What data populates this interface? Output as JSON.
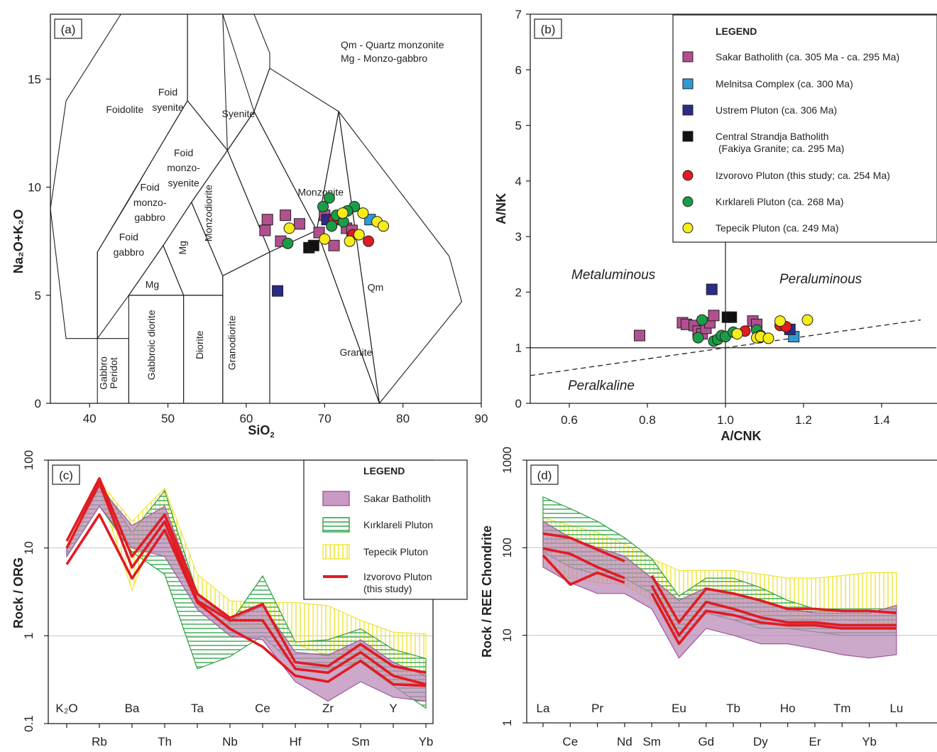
{
  "panels": {
    "a": {
      "label": "(a)",
      "xlabel": "SiO",
      "xlabel_sub": "2",
      "ylabel": "Na₂O+K₂O",
      "note_lines": [
        "Qm - Quartz monzonite",
        "Mg - Monzo-gabbro"
      ],
      "field_labels": [
        "Foidolite",
        "Foid",
        "syenite",
        "Syenite",
        "Foid",
        "monzo-",
        "syenite",
        "Foid",
        "monzo-",
        "gabbro",
        "Foid",
        "gabbro",
        "Mg",
        "Monzodiorite",
        "Monzonite",
        "Qm",
        "Granite",
        "Granodiorite",
        "Diorite",
        "Gabbroic diorite",
        "Gabbro",
        "Peridot",
        "gabbro"
      ]
    },
    "b": {
      "label": "(b)",
      "xlabel": "A/CNK",
      "ylabel": "A/NK",
      "region_labels": [
        "Metaluminous",
        "Peraluminous",
        "Peralkaline"
      ]
    },
    "c": {
      "label": "(c)",
      "ylabel": "Rock / ORG",
      "top_labels": [
        "K₂O",
        "Ba",
        "Ta",
        "Ce",
        "Zr",
        "Y"
      ],
      "bottom_labels": [
        "Rb",
        "Th",
        "Nb",
        "Hf",
        "Sm",
        "Yb"
      ]
    },
    "d": {
      "label": "(d)",
      "ylabel": "Rock / REE Chondrite",
      "top_labels": [
        "La",
        "Pr",
        "Eu",
        "Tb",
        "Ho",
        "Tm",
        "Lu"
      ],
      "bottom_labels": [
        "Ce",
        "Nd",
        "Sm",
        "Gd",
        "Dy",
        "Er",
        "Yb"
      ]
    }
  },
  "legend_b": {
    "title": "LEGEND",
    "items": [
      {
        "label": "Sakar Batholith (ca. 305 Ma - ca. 295 Ma)",
        "color": "#b1508f",
        "shape": "square"
      },
      {
        "label": "Melnitsa Complex (ca. 300 Ma)",
        "color": "#2f9bd6",
        "shape": "square"
      },
      {
        "label": "Ustrem Pluton (ca. 306 Ma)",
        "color": "#2b2b8a",
        "shape": "square"
      },
      {
        "label": "Central Strandja Batholith",
        "label2": "(Fakiya Granite; ca. 295 Ma)",
        "color": "#111111",
        "shape": "square"
      },
      {
        "label": "Izvorovo Pluton (this study; ca. 254 Ma)",
        "color": "#e11b22",
        "shape": "circle"
      },
      {
        "label": "Kırklareli Pluton (ca. 268 Ma)",
        "color": "#1b9c47",
        "shape": "circle"
      },
      {
        "label": "Tepecik Pluton (ca. 249 Ma)",
        "color": "#f5ec1a",
        "shape": "circle"
      }
    ]
  },
  "legend_c": {
    "title": "LEGEND",
    "items": [
      {
        "label": "Sakar Batholith",
        "color": "#c88cc0",
        "pattern": "solid"
      },
      {
        "label": "Kırklareli Pluton",
        "color": "#2ea045",
        "pattern": "horizontal-lines"
      },
      {
        "label": "Tepecik Pluton",
        "color": "#f0e43a",
        "pattern": "vertical-lines"
      },
      {
        "label": "Izvorovo Pluton",
        "label2": "(this study)",
        "color": "#e11b22",
        "pattern": "line"
      }
    ]
  },
  "chart_data": [
    {
      "id": "a",
      "type": "scatter",
      "xlabel": "SiO2",
      "ylabel": "Na2O+K2O",
      "xlim": [
        35,
        90
      ],
      "ylim": [
        0,
        18
      ],
      "xticks": [
        40,
        50,
        60,
        70,
        80,
        90
      ],
      "yticks": [
        0,
        5,
        10,
        15
      ],
      "grid": false,
      "series": [
        {
          "name": "Sakar Batholith (ca. 305 Ma - ca. 295 Ma)",
          "marker": "square",
          "color": "#b1508f",
          "points": [
            [
              62.7,
              8.5
            ],
            [
              62.4,
              8.0
            ],
            [
              65.0,
              8.7
            ],
            [
              66.8,
              8.3
            ],
            [
              64.4,
              7.5
            ],
            [
              69.3,
              7.9
            ],
            [
              70.0,
              8.7
            ],
            [
              71.5,
              8.5
            ],
            [
              72.8,
              8.1
            ],
            [
              71.2,
              7.3
            ],
            [
              73.5,
              8.0
            ]
          ]
        },
        {
          "name": "Melnitsa Complex (ca. 300 Ma)",
          "marker": "square",
          "color": "#2f9bd6",
          "points": [
            [
              75.8,
              8.5
            ]
          ]
        },
        {
          "name": "Ustrem Pluton (ca. 306 Ma)",
          "marker": "square",
          "color": "#2b2b8a",
          "points": [
            [
              64.0,
              5.2
            ],
            [
              70.3,
              8.5
            ]
          ]
        },
        {
          "name": "Central Strandja Batholith (Fakiya Granite; ca. 295 Ma)",
          "marker": "square",
          "color": "#111111",
          "points": [
            [
              68.0,
              7.2
            ],
            [
              68.6,
              7.3
            ]
          ]
        },
        {
          "name": "Izvorovo Pluton (this study; ca. 254 Ma)",
          "marker": "circle",
          "color": "#e11b22",
          "points": [
            [
              71.2,
              8.5
            ],
            [
              73.6,
              7.8
            ],
            [
              75.6,
              7.5
            ]
          ]
        },
        {
          "name": "Kırklareli Pluton (ca. 268 Ma)",
          "marker": "circle",
          "color": "#1b9c47",
          "points": [
            [
              65.3,
              7.4
            ],
            [
              69.8,
              9.1
            ],
            [
              70.6,
              9.5
            ],
            [
              71.5,
              8.7
            ],
            [
              72.4,
              8.4
            ],
            [
              73.8,
              9.1
            ],
            [
              72.9,
              8.9
            ],
            [
              70.9,
              8.2
            ]
          ]
        },
        {
          "name": "Tepecik Pluton (ca. 249 Ma)",
          "marker": "circle",
          "color": "#f5ec1a",
          "points": [
            [
              65.5,
              8.1
            ],
            [
              70.0,
              7.6
            ],
            [
              72.3,
              8.8
            ],
            [
              74.4,
              7.8
            ],
            [
              74.9,
              8.8
            ],
            [
              76.7,
              8.4
            ],
            [
              77.5,
              8.2
            ],
            [
              73.2,
              7.5
            ]
          ]
        }
      ]
    },
    {
      "id": "b",
      "type": "scatter",
      "xlabel": "A/CNK",
      "ylabel": "A/NK",
      "xlim": [
        0.5,
        1.5
      ],
      "ylim": [
        0,
        7
      ],
      "xticks": [
        0.6,
        0.8,
        1.0,
        1.2,
        1.4
      ],
      "yticks": [
        0,
        1,
        2,
        3,
        4,
        5,
        6,
        7
      ],
      "grid": false,
      "reference_lines": [
        {
          "kind": "solid",
          "y": 1
        },
        {
          "kind": "solid",
          "x": 1
        },
        {
          "kind": "dashed",
          "from": [
            0.5,
            0.5
          ],
          "to": [
            1.5,
            1.5
          ]
        }
      ],
      "series": [
        {
          "name": "Sakar Batholith (ca. 305 Ma - ca. 295 Ma)",
          "marker": "square",
          "color": "#b1508f",
          "points": [
            [
              0.78,
              1.22
            ],
            [
              0.89,
              1.45
            ],
            [
              0.9,
              1.42
            ],
            [
              0.92,
              1.4
            ],
            [
              0.93,
              1.3
            ],
            [
              0.94,
              1.25
            ],
            [
              0.95,
              1.35
            ],
            [
              0.96,
              1.45
            ],
            [
              0.97,
              1.58
            ],
            [
              1.07,
              1.48
            ],
            [
              1.08,
              1.42
            ]
          ]
        },
        {
          "name": "Melnitsa Complex (ca. 300 Ma)",
          "marker": "square",
          "color": "#2f9bd6",
          "points": [
            [
              1.175,
              1.2
            ]
          ]
        },
        {
          "name": "Ustrem Pluton (ca. 306 Ma)",
          "marker": "square",
          "color": "#2b2b8a",
          "points": [
            [
              0.965,
              2.05
            ],
            [
              1.165,
              1.33
            ]
          ]
        },
        {
          "name": "Central Strandja Batholith (Fakiya Granite; ca. 295 Ma)",
          "marker": "square",
          "color": "#111111",
          "points": [
            [
              1.005,
              1.55
            ],
            [
              1.015,
              1.55
            ]
          ]
        },
        {
          "name": "Izvorovo Pluton (this study; ca. 254 Ma)",
          "marker": "circle",
          "color": "#e11b22",
          "points": [
            [
              1.05,
              1.3
            ],
            [
              1.14,
              1.4
            ],
            [
              1.155,
              1.38
            ]
          ]
        },
        {
          "name": "Kırklareli Pluton (ca. 268 Ma)",
          "marker": "circle",
          "color": "#1b9c47",
          "points": [
            [
              0.93,
              1.18
            ],
            [
              0.94,
              1.5
            ],
            [
              0.97,
              1.12
            ],
            [
              0.98,
              1.15
            ],
            [
              0.99,
              1.22
            ],
            [
              1.0,
              1.2
            ],
            [
              1.02,
              1.28
            ],
            [
              1.08,
              1.32
            ],
            [
              1.09,
              1.22
            ]
          ]
        },
        {
          "name": "Tepecik Pluton (ca. 249 Ma)",
          "marker": "circle",
          "color": "#f5ec1a",
          "points": [
            [
              1.03,
              1.25
            ],
            [
              1.08,
              1.18
            ],
            [
              1.09,
              1.2
            ],
            [
              1.11,
              1.17
            ],
            [
              1.14,
              1.48
            ],
            [
              1.21,
              1.5
            ]
          ]
        }
      ]
    },
    {
      "id": "c",
      "type": "line",
      "ylabel": "Rock / ORG",
      "yscale": "log",
      "ylim": [
        0.1,
        100
      ],
      "yticks": [
        0.1,
        1,
        10,
        100
      ],
      "grid": "horizontal",
      "categories": [
        "K2O",
        "Rb",
        "Ba",
        "Th",
        "Ta",
        "Nb",
        "Ce",
        "Hf",
        "Zr",
        "Sm",
        "Y",
        "Yb"
      ],
      "bands": [
        {
          "name": "Tepecik Pluton",
          "upper": [
            9.5,
            58,
            20,
            48,
            5,
            2.5,
            2.4,
            2.4,
            2.2,
            1.5,
            1.1,
            1.05
          ],
          "lower": [
            9,
            45,
            3.3,
            30,
            2.2,
            1.3,
            1.25,
            0.8,
            0.6,
            0.5,
            0.3,
            0.28
          ]
        },
        {
          "name": "Kırklareli Pluton",
          "upper": [
            10,
            55,
            15,
            45,
            3,
            1.4,
            4.8,
            0.85,
            0.9,
            1.2,
            0.7,
            0.55
          ],
          "lower": [
            8,
            30,
            9,
            5,
            0.42,
            0.58,
            1.0,
            0.45,
            0.42,
            0.5,
            0.27,
            0.15
          ]
        },
        {
          "name": "Sakar Batholith",
          "upper": [
            10,
            50,
            18,
            30,
            3,
            1.5,
            2.2,
            0.65,
            0.6,
            0.9,
            0.5,
            0.35
          ],
          "lower": [
            8,
            30,
            10,
            8,
            2,
            1.0,
            0.9,
            0.3,
            0.18,
            0.3,
            0.2,
            0.18
          ]
        }
      ],
      "series": [
        {
          "name": "Izvorovo Pluton 1",
          "values": [
            12,
            62,
            8,
            24,
            3,
            1.6,
            2.3,
            0.5,
            0.45,
            0.8,
            0.45,
            0.38
          ]
        },
        {
          "name": "Izvorovo Pluton 2",
          "values": [
            10,
            55,
            6,
            20,
            2.5,
            1.5,
            1.5,
            0.42,
            0.38,
            0.65,
            0.35,
            0.28
          ]
        },
        {
          "name": "Izvorovo Pluton 3",
          "values": [
            6.5,
            24,
            4.5,
            16,
            2.4,
            1.2,
            0.75,
            0.35,
            0.3,
            0.52,
            0.28,
            0.27
          ]
        }
      ]
    },
    {
      "id": "d",
      "type": "line",
      "ylabel": "Rock / REE Chondrite",
      "yscale": "log",
      "ylim": [
        1,
        1000
      ],
      "yticks": [
        1,
        10,
        100,
        1000
      ],
      "grid": "horizontal",
      "categories": [
        "La",
        "Ce",
        "Pr",
        "Nd",
        "Sm",
        "Eu",
        "Gd",
        "Tb",
        "Dy",
        "Ho",
        "Er",
        "Tm",
        "Yb",
        "Lu"
      ],
      "bands": [
        {
          "name": "Tepecik Pluton",
          "upper": [
            220,
            180,
            150,
            110,
            75,
            55,
            55,
            55,
            50,
            45,
            45,
            48,
            52,
            52
          ],
          "lower": [
            60,
            45,
            40,
            38,
            25,
            12,
            22,
            20,
            18,
            16,
            15,
            15,
            14,
            14
          ]
        },
        {
          "name": "Kırklareli Pluton",
          "upper": [
            380,
            280,
            200,
            130,
            75,
            28,
            45,
            45,
            35,
            25,
            20,
            20,
            20,
            20
          ],
          "lower": [
            90,
            60,
            50,
            45,
            30,
            8,
            18,
            15,
            12,
            12,
            11,
            10,
            10,
            10
          ]
        },
        {
          "name": "Sakar Batholith",
          "upper": [
            200,
            130,
            100,
            80,
            45,
            25,
            35,
            30,
            25,
            20,
            18,
            18,
            18,
            22
          ],
          "lower": [
            60,
            40,
            30,
            30,
            20,
            5.5,
            12,
            10,
            8,
            8,
            7,
            6,
            5.5,
            6
          ]
        }
      ],
      "series": [
        {
          "name": "Izvorovo Pluton 1",
          "values": [
            145,
            130,
            95,
            70,
            null,
            null,
            null,
            null,
            null,
            null,
            null,
            null,
            null,
            null
          ]
        },
        {
          "name": "Izvorovo Pluton 2",
          "values": [
            98,
            85,
            60,
            45,
            null,
            null,
            null,
            null,
            null,
            null,
            null,
            null,
            null,
            null
          ]
        },
        {
          "name": "Izvorovo Pluton 3",
          "values": [
            82,
            38,
            52,
            40,
            null,
            null,
            null,
            null,
            null,
            null,
            null,
            null,
            null,
            null
          ]
        },
        {
          "name": "Izvorovo Pluton 4",
          "values": [
            null,
            null,
            null,
            null,
            48,
            14,
            34,
            30,
            25,
            20,
            20,
            19,
            19,
            18
          ]
        },
        {
          "name": "Izvorovo Pluton 5",
          "values": [
            null,
            null,
            null,
            null,
            37,
            10,
            24,
            20,
            16,
            14,
            14,
            13,
            13,
            13
          ]
        },
        {
          "name": "Izvorovo Pluton 6",
          "values": [
            null,
            null,
            null,
            null,
            30,
            8,
            19,
            17,
            14,
            13,
            13,
            12,
            12,
            12
          ]
        }
      ]
    }
  ]
}
